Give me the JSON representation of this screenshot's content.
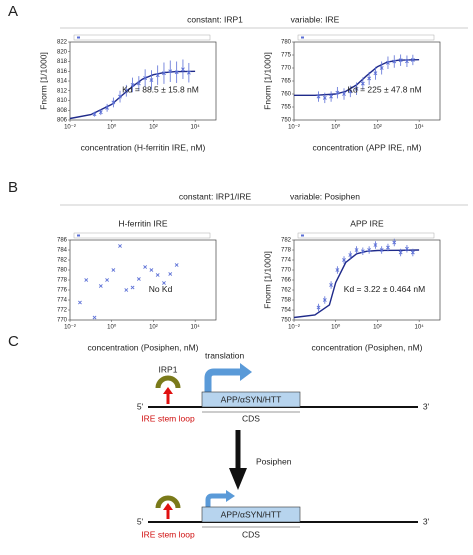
{
  "panels": [
    "A",
    "B",
    "C"
  ],
  "headers": [
    {
      "constant": "constant: IRP1",
      "variable": "variable: IRE"
    },
    {
      "constant": "constant: IRP1/IRE",
      "variable": "variable: Posiphen"
    }
  ],
  "chart_data": [
    {
      "type": "scatter",
      "xlabel": "concentration (H-ferritin IRE, nM)",
      "ylabel": "Fnorm [1/1000]",
      "annotation": "Kd = 88.5 ± 15.8 nM",
      "log_x": true,
      "xlim": [
        0.01,
        100000
      ],
      "xticks": [
        {
          "value": 0.01,
          "label": "10⁻²"
        },
        {
          "value": 1,
          "label": "10⁰"
        },
        {
          "value": 100,
          "label": "10²"
        },
        {
          "value": 10000,
          "label": "10⁴"
        }
      ],
      "ylim": [
        806,
        822
      ],
      "yticks": [
        806,
        808,
        810,
        812,
        814,
        816,
        818,
        820,
        822
      ],
      "series": [
        {
          "color": "#5b6fd6",
          "x": [
            0.15,
            0.3,
            0.6,
            1.2,
            2.5,
            5,
            10,
            20,
            40,
            80,
            160,
            320,
            640,
            1300,
            2600,
            5000
          ],
          "values": [
            807.2,
            807.6,
            808.5,
            809.6,
            810.8,
            812,
            813.2,
            813.5,
            814.6,
            814.2,
            815.2,
            815.6,
            816,
            815.8,
            816.4,
            815.7
          ],
          "errors": [
            0.5,
            0.6,
            0.8,
            1,
            1.2,
            1.2,
            1.5,
            1.5,
            1.8,
            2,
            2,
            2.2,
            2.2,
            2.2,
            2,
            2
          ]
        }
      ],
      "fit": {
        "color": "#1f2a8a",
        "x": [
          0.01,
          0.1,
          1,
          3,
          10,
          30,
          100,
          300,
          1000,
          10000
        ],
        "values": [
          806.3,
          807.1,
          809.2,
          811,
          812.9,
          814.4,
          815.3,
          815.7,
          815.9,
          816
        ]
      }
    },
    {
      "type": "scatter",
      "xlabel": "concentration (APP IRE, nM)",
      "ylabel": "Fnorm [1/1000]",
      "annotation": "Kd = 225 ± 47.8 nM",
      "log_x": true,
      "xlim": [
        0.01,
        100000
      ],
      "xticks": [
        {
          "value": 0.01,
          "label": "10⁻²"
        },
        {
          "value": 1,
          "label": "10⁰"
        },
        {
          "value": 100,
          "label": "10²"
        },
        {
          "value": 10000,
          "label": "10⁴"
        }
      ],
      "ylim": [
        750,
        780
      ],
      "yticks": [
        750,
        755,
        760,
        765,
        770,
        775,
        780
      ],
      "series": [
        {
          "color": "#5b6fd6",
          "x": [
            0.15,
            0.3,
            0.6,
            1.2,
            2.5,
            5,
            10,
            20,
            40,
            80,
            160,
            320,
            640,
            1300,
            2600,
            5000
          ],
          "values": [
            759,
            758.5,
            759,
            760.5,
            760,
            761,
            762,
            764,
            766,
            768,
            770,
            772,
            772.5,
            773,
            772.6,
            773.1
          ],
          "errors": [
            2,
            2,
            2,
            2.2,
            2.2,
            2.2,
            2.4,
            2.4,
            2.5,
            2.5,
            2.5,
            2.4,
            2.4,
            2.2,
            2.2,
            2
          ]
        }
      ],
      "fit": {
        "color": "#1f2a8a",
        "x": [
          0.01,
          0.1,
          1,
          3,
          10,
          30,
          100,
          300,
          1000,
          10000
        ],
        "values": [
          759.5,
          759.5,
          760,
          761,
          763.5,
          767,
          770.5,
          772.3,
          773,
          773.2
        ]
      }
    },
    {
      "type": "scatter",
      "subtitle": "H-ferritin IRE",
      "xlabel": "concentration (Posiphen, nM)",
      "annotation": "No Kd",
      "log_x": true,
      "xlim": [
        0.01,
        100000
      ],
      "xticks": [
        {
          "value": 0.01,
          "label": "10⁻²"
        },
        {
          "value": 1,
          "label": "10⁰"
        },
        {
          "value": 100,
          "label": "10²"
        },
        {
          "value": 10000,
          "label": "10⁴"
        }
      ],
      "ylim": [
        770,
        786
      ],
      "yticks": [
        770,
        772,
        774,
        776,
        778,
        780,
        782,
        784,
        786
      ],
      "series": [
        {
          "color": "#5b6fd6",
          "x": [
            0.03,
            0.06,
            0.15,
            0.3,
            0.6,
            1.2,
            2.5,
            5,
            10,
            20,
            40,
            80,
            160,
            320,
            640,
            1300
          ],
          "values": [
            773.5,
            778,
            770.5,
            776.8,
            778,
            780,
            784.8,
            776,
            776.5,
            778.2,
            780.6,
            780,
            779,
            777.4,
            779.2,
            781
          ]
        }
      ]
    },
    {
      "type": "scatter",
      "subtitle": "APP IRE",
      "xlabel": "concentration (Posiphen, nM)",
      "ylabel": "Fnorm [1/1000]",
      "annotation": "Kd = 3.22 ± 0.464 nM",
      "log_x": true,
      "xlim": [
        0.01,
        100000
      ],
      "xticks": [
        {
          "value": 0.01,
          "label": "10⁻²"
        },
        {
          "value": 1,
          "label": "10⁰"
        },
        {
          "value": 100,
          "label": "10²"
        },
        {
          "value": 10000,
          "label": "10⁴"
        }
      ],
      "ylim": [
        750,
        782
      ],
      "yticks": [
        750,
        754,
        758,
        762,
        766,
        770,
        774,
        778,
        782
      ],
      "series": [
        {
          "color": "#5b6fd6",
          "x": [
            0.15,
            0.3,
            0.6,
            1.2,
            2.5,
            5,
            10,
            20,
            40,
            80,
            160,
            320,
            640,
            1300,
            2600,
            5000
          ],
          "values": [
            755,
            758,
            764,
            770,
            774,
            776,
            778,
            777.5,
            778,
            780,
            778,
            779,
            781,
            777,
            778.5,
            777
          ],
          "errors": [
            1.5,
            1.5,
            1.5,
            1.5,
            1.5,
            1.5,
            1.5,
            1.5,
            1.5,
            1.5,
            1.5,
            1.5,
            1.5,
            1.5,
            1.5,
            1.5
          ]
        }
      ],
      "fit": {
        "color": "#1f2a8a",
        "x": [
          0.01,
          0.1,
          0.5,
          1,
          3,
          10,
          30,
          100,
          1000,
          10000
        ],
        "values": [
          751,
          752,
          756,
          765,
          773,
          776.5,
          777.5,
          777.8,
          777.9,
          778
        ]
      }
    }
  ],
  "diagram": {
    "top": {
      "protein": "IRP1",
      "arrow": "translation",
      "five": "5'",
      "three": "3'",
      "gene": "APP/αSYN/HTT",
      "cds": "CDS",
      "loop": "IRE stem loop"
    },
    "treatment": "Posiphen",
    "bottom": {
      "five": "5'",
      "three": "3'",
      "gene": "APP/αSYN/HTT",
      "cds": "CDS",
      "loop": "IRE stem loop"
    }
  }
}
